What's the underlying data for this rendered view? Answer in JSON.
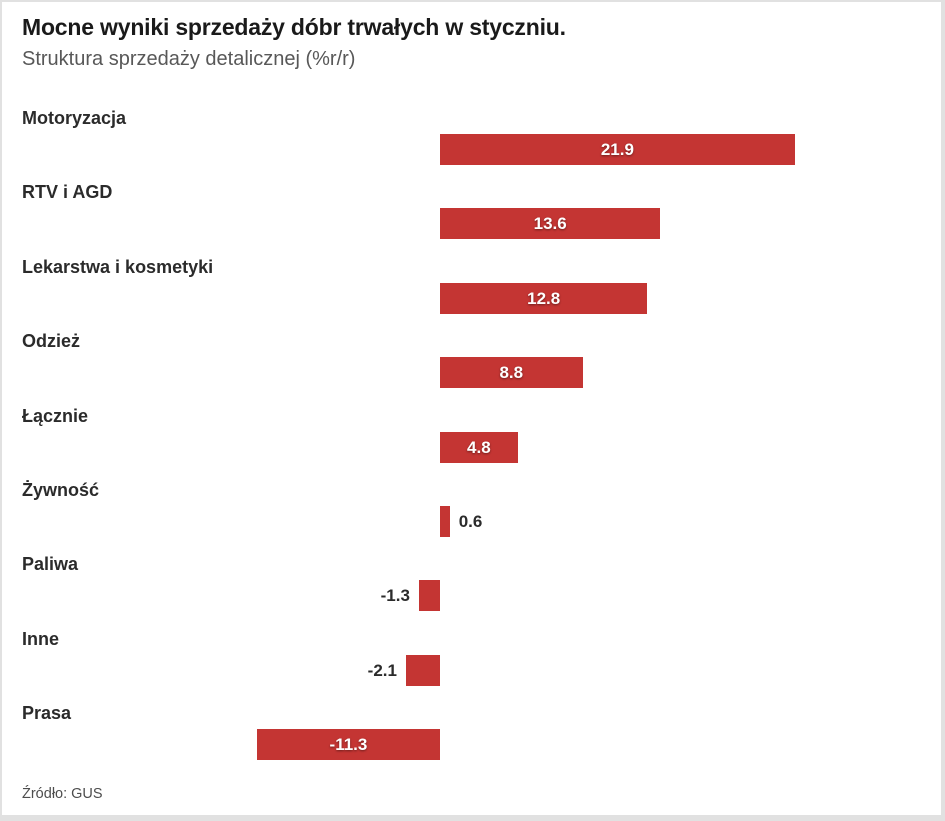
{
  "chart_data": {
    "type": "bar",
    "orientation": "horizontal",
    "title": "Mocne wyniki sprzedaży dóbr trwałych w styczniu.",
    "subtitle": "Struktura sprzedaży detalicznej (%r/r)",
    "source": "Źródło: GUS",
    "categories": [
      "Motoryzacja",
      "RTV i AGD",
      "Lekarstwa i kosmetyki",
      "Odzież",
      "Łącznie",
      "Żywność",
      "Paliwa",
      "Inne",
      "Prasa"
    ],
    "values": [
      21.9,
      13.6,
      12.8,
      8.8,
      4.8,
      0.6,
      -1.3,
      -2.1,
      -11.3
    ],
    "value_labels": [
      "21.9",
      "13.6",
      "12.8",
      "8.8",
      "4.8",
      "0.6",
      "-1.3",
      "-2.1",
      "-11.3"
    ],
    "xlim": [
      -12,
      22
    ],
    "grid": false,
    "legend": false,
    "bar_color": "#c43533"
  },
  "colors": {
    "accent": "#c43533",
    "title_text": "#1a1a1a",
    "subtitle_text": "#585858",
    "label_text": "#2b2b2b",
    "frame": "#e1e1e1",
    "background": "#ffffff"
  }
}
